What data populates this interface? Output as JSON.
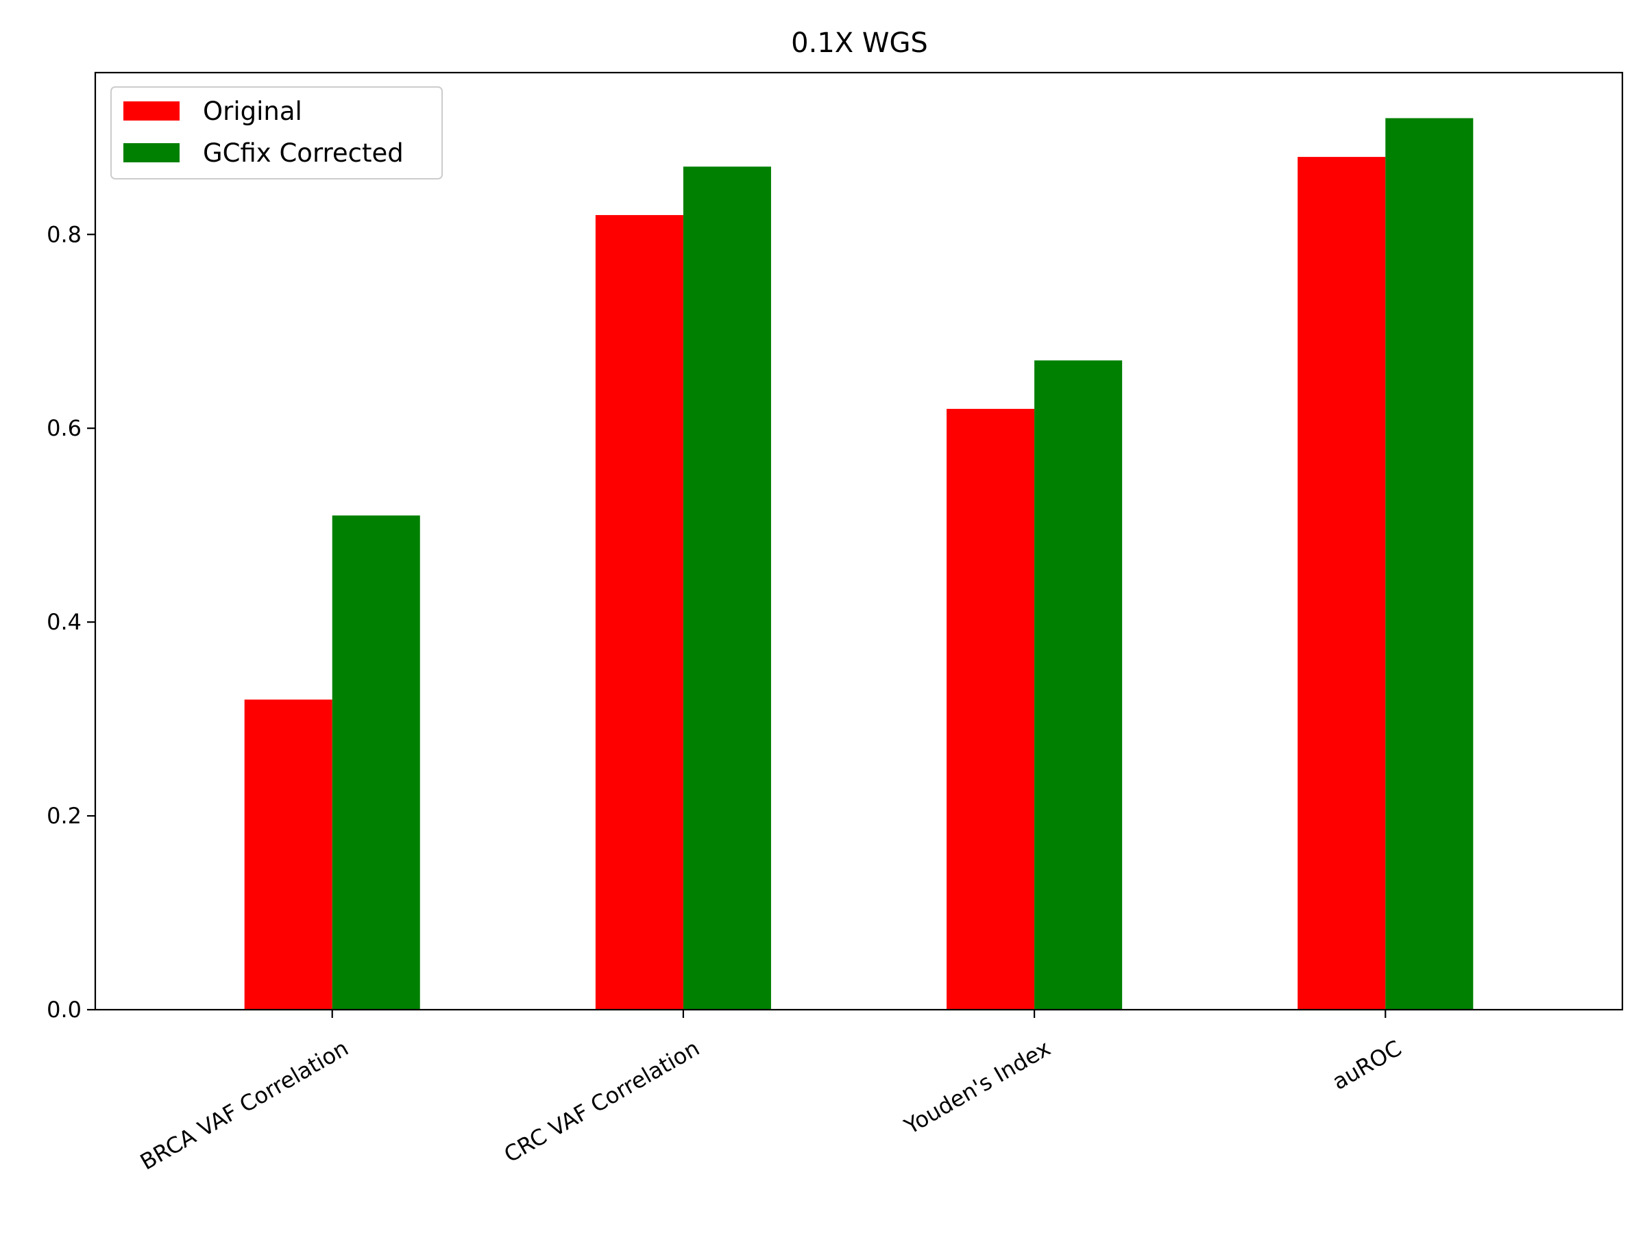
{
  "chart_data": {
    "type": "bar",
    "title": "0.1X WGS",
    "xlabel": "",
    "ylabel": "",
    "categories": [
      "BRCA VAF Correlation",
      "CRC VAF Correlation",
      "Youden's Index",
      "auROC"
    ],
    "series": [
      {
        "name": "Original",
        "color": "#ff0000",
        "values": [
          0.32,
          0.82,
          0.62,
          0.88
        ]
      },
      {
        "name": "GCfix Corrected",
        "color": "#008000",
        "values": [
          0.51,
          0.87,
          0.67,
          0.92
        ]
      }
    ],
    "ylim": [
      0,
      0.967
    ],
    "yticks": [
      0.0,
      0.2,
      0.4,
      0.6,
      0.8
    ],
    "ytick_labels": [
      "0.0",
      "0.2",
      "0.4",
      "0.6",
      "0.8"
    ],
    "grid": false,
    "legend_position": "top-left",
    "xtick_rotation": "30 degrees"
  }
}
